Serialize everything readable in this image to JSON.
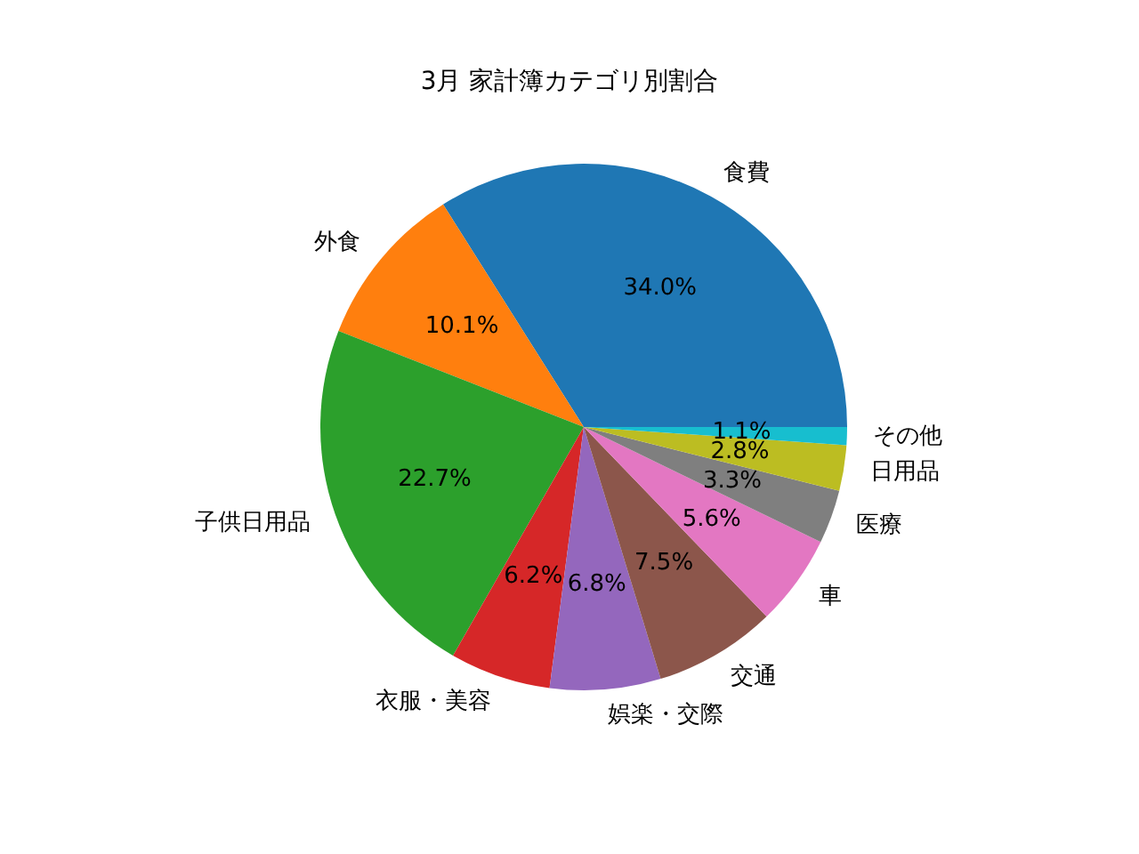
{
  "chart_data": {
    "type": "pie",
    "title": "3月 家計簿カテゴリ別割合",
    "categories": [
      "食費",
      "外食",
      "子供日用品",
      "衣服・美容",
      "娯楽・交際",
      "交通",
      "車",
      "医療",
      "日用品",
      "その他"
    ],
    "values": [
      34.0,
      10.1,
      22.7,
      6.2,
      6.8,
      7.5,
      5.6,
      3.3,
      2.8,
      1.1
    ],
    "value_labels": [
      "34.0%",
      "10.1%",
      "22.7%",
      "6.2%",
      "6.8%",
      "7.5%",
      "5.6%",
      "3.3%",
      "2.8%",
      "1.1%"
    ],
    "colors": [
      "#1f77b4",
      "#ff7f0e",
      "#2ca02c",
      "#d62728",
      "#9467bd",
      "#8c564b",
      "#e377c2",
      "#7f7f7f",
      "#bcbd22",
      "#17becf"
    ]
  }
}
